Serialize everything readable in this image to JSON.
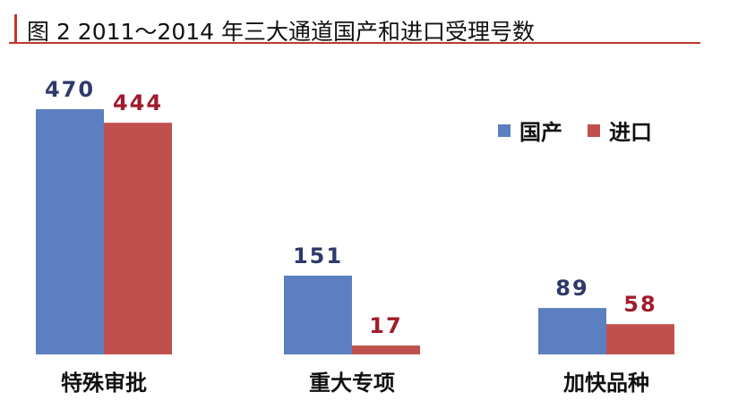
{
  "title": "图 2  2011～2014 年三大通道国产和进口受理号数",
  "colors": {
    "domestic": "#5b7fc0",
    "imported": "#c0504d",
    "domestic_label": "#2f3a6b",
    "imported_label": "#a01c2c",
    "title_accent": "#c0392b"
  },
  "legend": [
    {
      "name": "国产",
      "color": "#5b7fc0"
    },
    {
      "name": "进口",
      "color": "#c0504d"
    }
  ],
  "chart_data": {
    "type": "bar",
    "title": "图 2  2011～2014 年三大通道国产和进口受理号数",
    "categories": [
      "特殊审批",
      "重大专项",
      "加快品种"
    ],
    "series": [
      {
        "name": "国产",
        "values": [
          470,
          151,
          89
        ]
      },
      {
        "name": "进口",
        "values": [
          444,
          17,
          58
        ]
      }
    ],
    "xlabel": "",
    "ylabel": "",
    "ylim": [
      0,
      470
    ],
    "grid": false,
    "legend_position": "top-right"
  }
}
